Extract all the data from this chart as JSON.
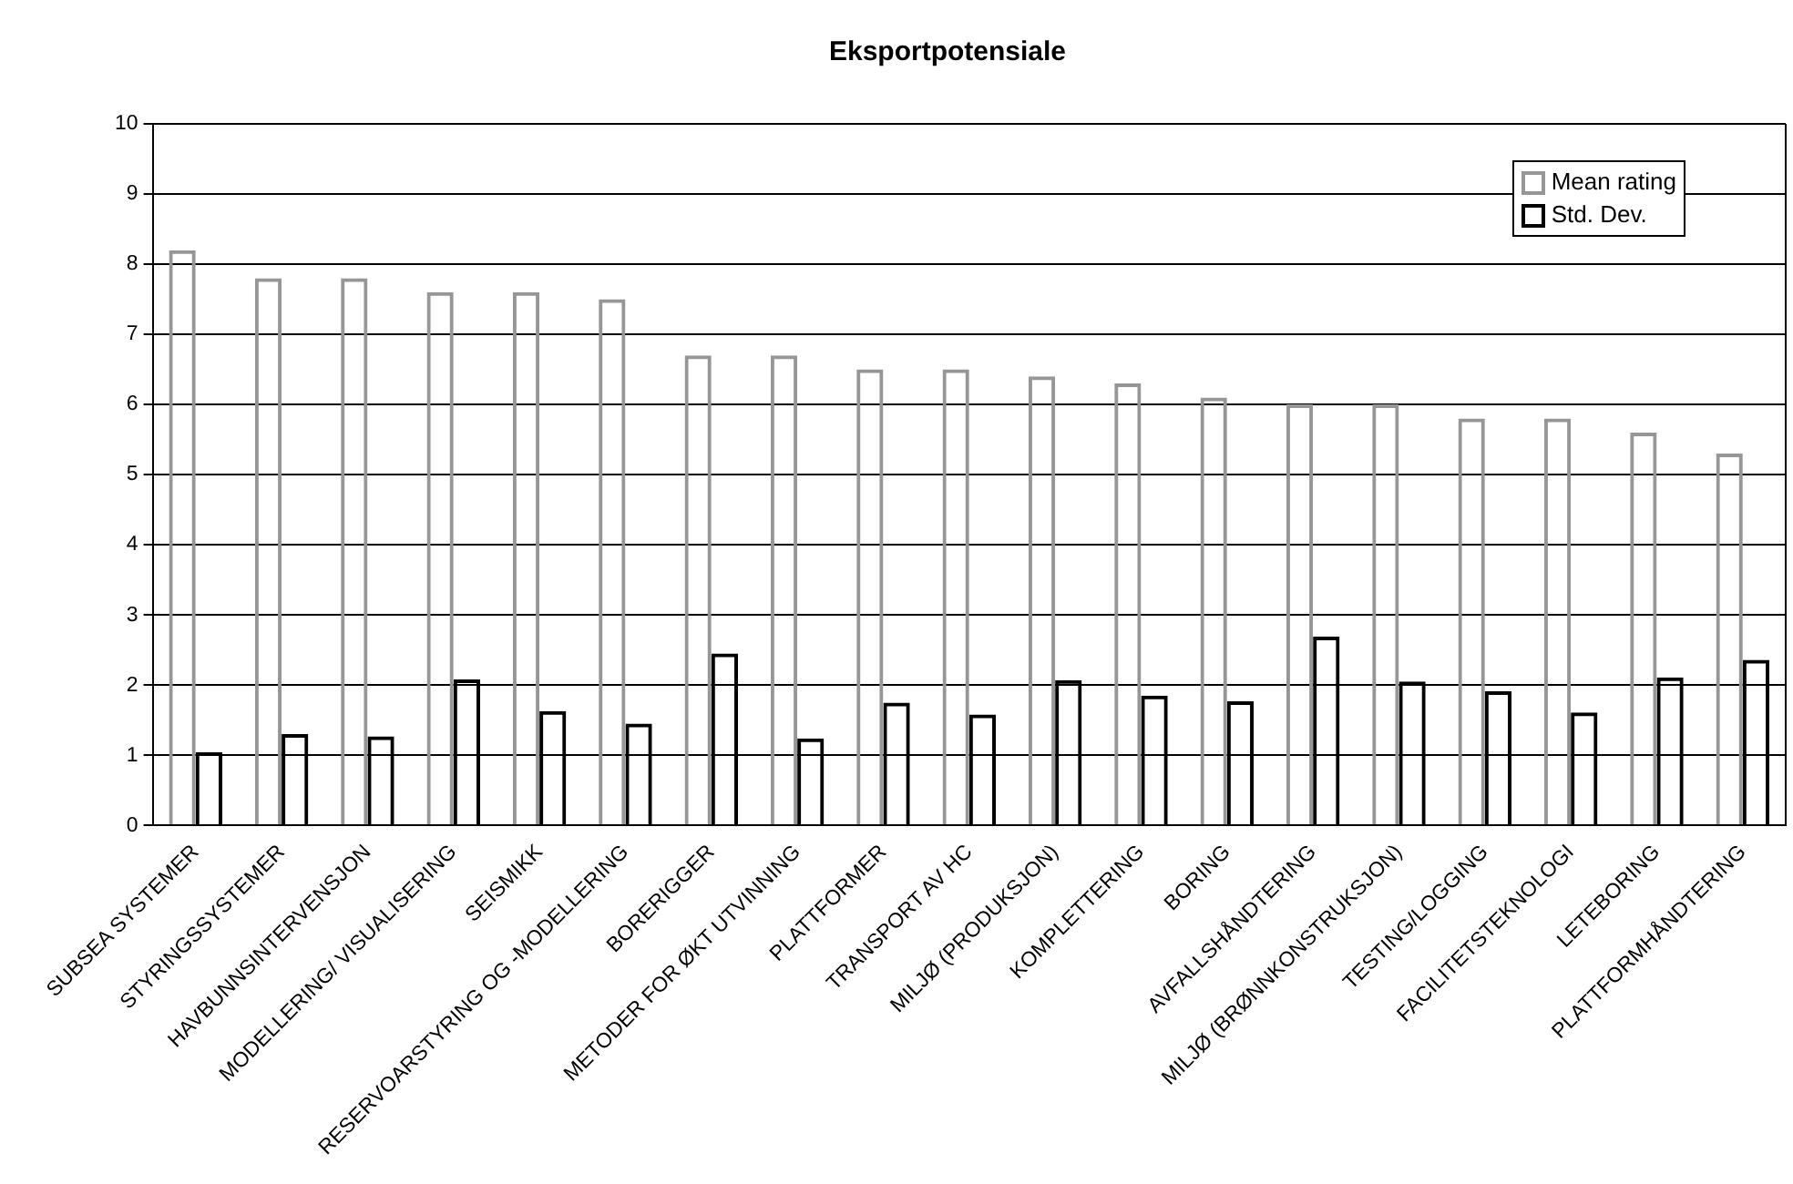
{
  "chart_data": {
    "type": "bar",
    "title": "Eksportpotensiale",
    "categories": [
      "SUBSEA SYSTEMER",
      "STYRINGSSYSTEMER",
      "HAVBUNNSINTERVENSJON",
      "MODELLERING/ VISUALISERING",
      "SEISMIKK",
      "RESERVOARSTYRING OG -MODELLERING",
      "BORERIGGER",
      "METODER FOR ØKT UTVINNING",
      "PLATTFORMER",
      "TRANSPORT AV HC",
      "MILJØ (PRODUKSJON)",
      "KOMPLETTERING",
      "BORING",
      "AVFALLSHÅNDTERING",
      "MILJØ (BRØNNKONSTRUKSJON)",
      "TESTING/LOGGING",
      "FACILITETSTEKNOLOGI",
      "LETEBORING",
      "PLATTFORMHÅNDTERING"
    ],
    "series": [
      {
        "name": "Mean rating",
        "color": "#969696",
        "values": [
          8.2,
          7.8,
          7.8,
          7.6,
          7.6,
          7.5,
          6.7,
          6.7,
          6.5,
          6.5,
          6.4,
          6.3,
          6.1,
          6.0,
          6.0,
          5.8,
          5.8,
          5.6,
          5.3
        ]
      },
      {
        "name": "Std. Dev.",
        "color": "#000000",
        "values": [
          1.04,
          1.3,
          1.27,
          2.08,
          1.63,
          1.45,
          2.45,
          1.24,
          1.75,
          1.58,
          2.07,
          1.85,
          1.77,
          2.69,
          2.05,
          1.91,
          1.61,
          2.11,
          2.36
        ]
      }
    ],
    "ylim": [
      0,
      10
    ],
    "yticks": [
      0,
      1,
      2,
      3,
      4,
      5,
      6,
      7,
      8,
      9,
      10
    ],
    "grid": "y",
    "legend": "top right"
  }
}
